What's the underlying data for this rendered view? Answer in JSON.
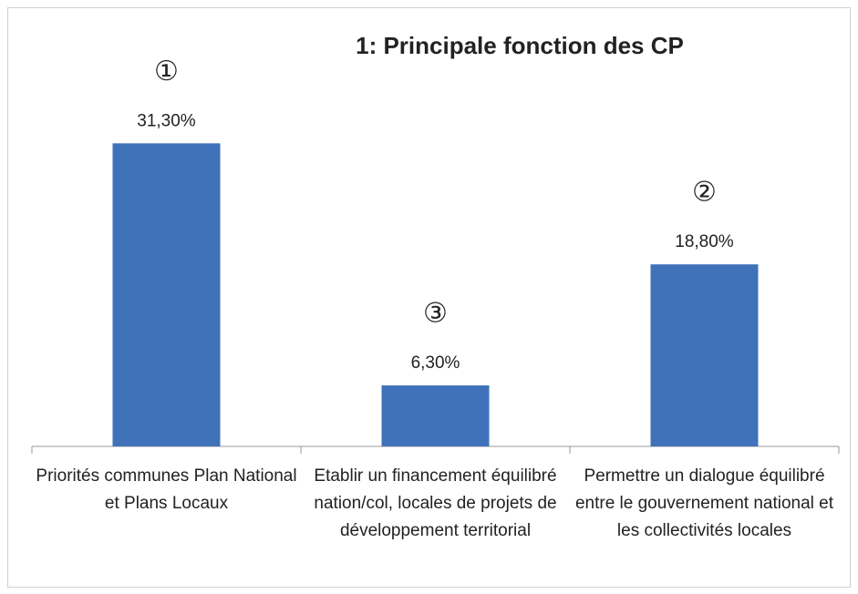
{
  "chart_data": {
    "type": "bar",
    "title": "1: Principale fonction des CP",
    "categories": [
      "Priorités communes Plan National et Plans Locaux",
      "Etablir un financement équilibré nation/col, locales de projets de développement territorial",
      "Permettre un dialogue équilibré entre le gouvernement national et les collectivités locales"
    ],
    "values": [
      31.3,
      6.3,
      18.8
    ],
    "value_labels": [
      "31,30%",
      "6,30%",
      "18,80%"
    ],
    "rank_labels": [
      "①",
      "③",
      "②"
    ],
    "color": "#3f72b9",
    "ylim": [
      0,
      35
    ]
  }
}
